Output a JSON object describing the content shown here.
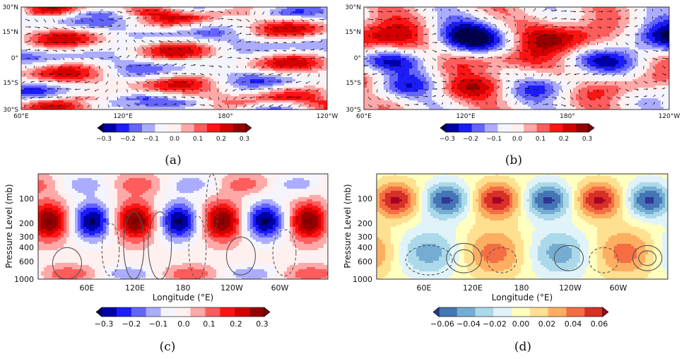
{
  "chart_data": [
    {
      "panel": "(a)",
      "type": "heatmap",
      "description_style": "map",
      "x_ticks": [
        "60°E",
        "120°E",
        "180°",
        "120°W"
      ],
      "y_ticks": [
        "30°N",
        "15°N",
        "0°",
        "15°S",
        "30°S"
      ],
      "x_range_deg_east": [
        60,
        240
      ],
      "y_range_deg_north": [
        -30,
        30
      ],
      "overlay": "wind vectors and coastlines",
      "colorbar_ticks": [
        "−0.3",
        "−0.2",
        "−0.1",
        "0.0",
        "0.1",
        "0.2",
        "0.3"
      ],
      "colorbar_range": [
        -0.3,
        0.3
      ],
      "colormap": "seismic",
      "caption": "(a)"
    },
    {
      "panel": "(b)",
      "type": "heatmap",
      "description_style": "map",
      "x_ticks": [
        "60°E",
        "120°E",
        "180°",
        "120°W"
      ],
      "y_ticks": [
        "30°N",
        "15°N",
        "0°",
        "15°S",
        "30°S"
      ],
      "x_range_deg_east": [
        60,
        240
      ],
      "y_range_deg_north": [
        -30,
        30
      ],
      "overlay": "wind vectors and coastlines",
      "colorbar_ticks": [
        "−0.3",
        "−0.2",
        "−0.1",
        "0.0",
        "0.1",
        "0.2",
        "0.3"
      ],
      "colorbar_range": [
        -0.3,
        0.3
      ],
      "colormap": "seismic",
      "caption": "(b)"
    },
    {
      "panel": "(c)",
      "type": "heatmap",
      "xlabel": "Longitude (°E)",
      "ylabel": "Pressure Level (mb)",
      "x_ticks": [
        "60E",
        "120E",
        "180",
        "120W",
        "60W"
      ],
      "y_ticks": [
        "100",
        "200",
        "300",
        "400",
        "600",
        "1000"
      ],
      "y_scale": "log (reversed)",
      "overlay": "line contours (solid positive, dashed negative)",
      "colorbar_ticks": [
        "−0.3",
        "−0.2",
        "−0.1",
        "0.0",
        "0.1",
        "0.2",
        "0.3"
      ],
      "colorbar_range": [
        -0.3,
        0.3
      ],
      "colormap": "seismic",
      "caption": "(c)"
    },
    {
      "panel": "(d)",
      "type": "heatmap",
      "xlabel": "Longitude (°E)",
      "ylabel": "Pressure Level (mb)",
      "x_ticks": [
        "60E",
        "120E",
        "180",
        "120W",
        "60W"
      ],
      "y_ticks": [
        "100",
        "200",
        "300",
        "400",
        "600",
        "1000"
      ],
      "y_scale": "log (reversed)",
      "overlay": "line contours (solid positive, dashed negative)",
      "colorbar_ticks": [
        "−0.06",
        "−0.04",
        "−0.02",
        "0.00",
        "0.02",
        "0.04",
        "0.06"
      ],
      "colorbar_range": [
        -0.06,
        0.06
      ],
      "colormap": "RdYlBu_r",
      "caption": "(d)"
    }
  ],
  "colors": {
    "seismic": [
      "#00004c",
      "#0000a8",
      "#1c1cff",
      "#6464ff",
      "#acacff",
      "#f4f4ff",
      "#fff0f0",
      "#ffa8a8",
      "#ff5c5c",
      "#ff1414",
      "#d40000",
      "#960000",
      "#7f0000"
    ],
    "rdylbu": [
      "#313695",
      "#4575b4",
      "#74add1",
      "#abd9e9",
      "#e0f3f8",
      "#ffffbf",
      "#fee090",
      "#fdae61",
      "#f46d43",
      "#d73027",
      "#a50026"
    ]
  }
}
